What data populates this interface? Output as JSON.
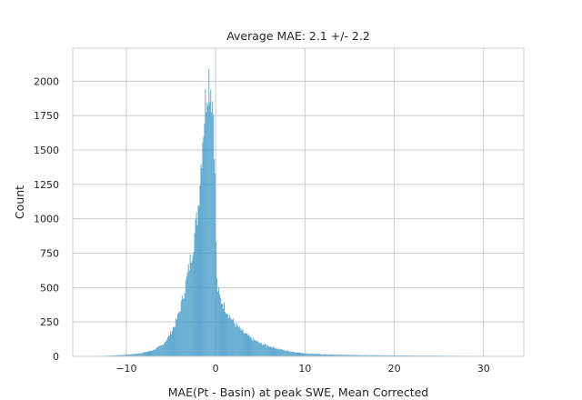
{
  "chart_data": {
    "type": "bar",
    "title": "Average MAE: 2.1 +/- 2.2",
    "xlabel": "MAE(Pt - Basin) at peak SWE, Mean Corrected",
    "ylabel": "Count",
    "xlim": [
      -16,
      34.5
    ],
    "ylim": [
      0,
      2240
    ],
    "xticks": [
      -10,
      0,
      10,
      20,
      30
    ],
    "xtick_labels": [
      "−10",
      "0",
      "10",
      "20",
      "30"
    ],
    "yticks": [
      0,
      250,
      500,
      750,
      1000,
      1250,
      1500,
      1750,
      2000
    ],
    "ytick_labels": [
      "0",
      "250",
      "500",
      "750",
      "1000",
      "1250",
      "1500",
      "1750",
      "2000"
    ],
    "grid": true,
    "bar_color": "#4c9fcb",
    "bar_edge_color": "#3a7fa8",
    "bin_width": 0.1,
    "histogram": {
      "x": [
        -14,
        -12,
        -11,
        -10,
        -9,
        -8,
        -7,
        -6,
        -5.5,
        -5,
        -4.5,
        -4,
        -3.5,
        -3,
        -2.5,
        -2,
        -1.8,
        -1.6,
        -1.4,
        -1.2,
        -1,
        -0.8,
        -0.6,
        -0.4,
        -0.2,
        0,
        0.1,
        0.2,
        0.5,
        1,
        1.5,
        2,
        3,
        4,
        5,
        6,
        7,
        8,
        9,
        10,
        12,
        15,
        20,
        25,
        30,
        32
      ],
      "count": [
        2,
        5,
        8,
        12,
        18,
        28,
        45,
        80,
        120,
        170,
        240,
        340,
        480,
        640,
        820,
        1050,
        1250,
        1450,
        1650,
        1800,
        1950,
        2050,
        2000,
        1900,
        1750,
        1100,
        580,
        500,
        420,
        360,
        300,
        250,
        180,
        130,
        95,
        75,
        55,
        40,
        30,
        22,
        15,
        10,
        7,
        5,
        3,
        2
      ]
    }
  }
}
